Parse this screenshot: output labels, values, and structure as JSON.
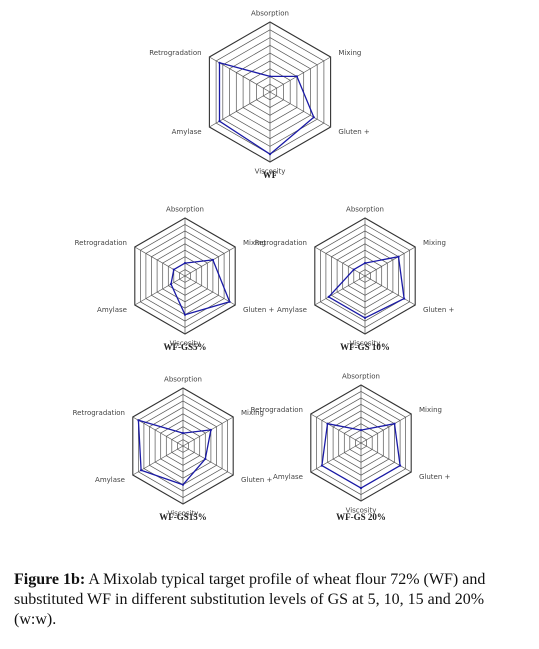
{
  "figure": {
    "caption_label": "Figure 1b:",
    "caption_text": " A Mixolab typical target profile of wheat flour 72% (WF) and substituted WF in different substitution levels of GS at 5, 10, 15 and 20% (w:w)."
  },
  "chart_data": [
    {
      "type": "radar",
      "title": "WF",
      "axes": [
        "Absorption",
        "Mixing",
        "Gluten +",
        "Viscosity",
        "Amylase",
        "Retrogradation"
      ],
      "rlim": [
        0,
        9
      ],
      "grid": true,
      "series_color": "#1a1aa6",
      "values": [
        2,
        4,
        6.5,
        8,
        7.5,
        7.5
      ]
    },
    {
      "type": "radar",
      "title": "WF-GS5%",
      "axes": [
        "Absorption",
        "Mixing",
        "Gluten +",
        "Viscosity",
        "Amylase",
        "Retrogradation"
      ],
      "rlim": [
        0,
        9
      ],
      "grid": true,
      "series_color": "#1a1aa6",
      "values": [
        2,
        5,
        8,
        6,
        2.5,
        2
      ]
    },
    {
      "type": "radar",
      "title": "WF-GS 10%",
      "axes": [
        "Absorption",
        "Mixing",
        "Gluten +",
        "Viscosity",
        "Amylase",
        "Retrogradation"
      ],
      "rlim": [
        0,
        9
      ],
      "grid": true,
      "series_color": "#1a1aa6",
      "values": [
        2,
        6,
        7,
        6.5,
        6.5,
        2
      ]
    },
    {
      "type": "radar",
      "title": "WF-GS15%",
      "axes": [
        "Absorption",
        "Mixing",
        "Gluten +",
        "Viscosity",
        "Amylase",
        "Retrogradation"
      ],
      "rlim": [
        0,
        9
      ],
      "grid": true,
      "series_color": "#1a1aa6",
      "values": [
        2,
        5,
        4,
        6,
        7.5,
        8
      ]
    },
    {
      "type": "radar",
      "title": "WF-GS 20%",
      "axes": [
        "Absorption",
        "Mixing",
        "Gluten +",
        "Viscosity",
        "Amylase",
        "Retrogradation"
      ],
      "rlim": [
        0,
        9
      ],
      "grid": true,
      "series_color": "#1a1aa6",
      "values": [
        2,
        6,
        7,
        7,
        7,
        6
      ]
    }
  ]
}
